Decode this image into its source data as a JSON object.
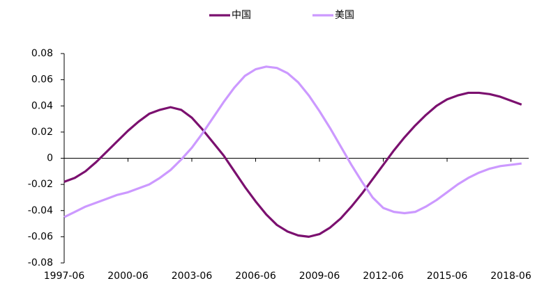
{
  "chart_data": {
    "type": "line",
    "x": [
      "1997-06",
      "1997-12",
      "1998-06",
      "1998-12",
      "1999-06",
      "1999-12",
      "2000-06",
      "2000-12",
      "2001-06",
      "2001-12",
      "2002-06",
      "2002-12",
      "2003-06",
      "2003-12",
      "2004-06",
      "2004-12",
      "2005-06",
      "2005-12",
      "2006-06",
      "2006-12",
      "2007-06",
      "2007-12",
      "2008-06",
      "2008-12",
      "2009-06",
      "2009-12",
      "2010-06",
      "2010-12",
      "2011-06",
      "2011-12",
      "2012-06",
      "2012-12",
      "2013-06",
      "2013-12",
      "2014-06",
      "2014-12",
      "2015-06",
      "2015-12",
      "2016-06",
      "2016-12",
      "2017-06",
      "2017-12",
      "2018-06",
      "2018-12"
    ],
    "series": [
      {
        "name": "中国",
        "color": "#7b106f",
        "values": [
          -0.018,
          -0.015,
          -0.01,
          -0.003,
          0.005,
          0.013,
          0.021,
          0.028,
          0.034,
          0.037,
          0.039,
          0.037,
          0.031,
          0.022,
          0.012,
          0.002,
          -0.01,
          -0.022,
          -0.033,
          -0.043,
          -0.051,
          -0.056,
          -0.059,
          -0.06,
          -0.058,
          -0.053,
          -0.046,
          -0.037,
          -0.027,
          -0.016,
          -0.005,
          0.006,
          0.016,
          0.025,
          0.033,
          0.04,
          0.045,
          0.048,
          0.05,
          0.05,
          0.049,
          0.047,
          0.044,
          0.041
        ]
      },
      {
        "name": "美国",
        "color": "#cc99ff",
        "values": [
          -0.045,
          -0.041,
          -0.037,
          -0.034,
          -0.031,
          -0.028,
          -0.026,
          -0.023,
          -0.02,
          -0.015,
          -0.009,
          -0.001,
          0.008,
          0.019,
          0.031,
          0.043,
          0.054,
          0.063,
          0.068,
          0.07,
          0.069,
          0.065,
          0.058,
          0.048,
          0.036,
          0.023,
          0.009,
          -0.005,
          -0.018,
          -0.03,
          -0.038,
          -0.041,
          -0.042,
          -0.041,
          -0.037,
          -0.032,
          -0.026,
          -0.02,
          -0.015,
          -0.011,
          -0.008,
          -0.006,
          -0.005,
          -0.004
        ]
      }
    ],
    "xticks": [
      "1997-06",
      "2000-06",
      "2003-06",
      "2006-06",
      "2009-06",
      "2012-06",
      "2015-06",
      "2018-06"
    ],
    "ylim": [
      -0.08,
      0.08
    ],
    "yticks": [
      {
        "value": -0.08,
        "label": "-0.08"
      },
      {
        "value": -0.06,
        "label": "-0.06"
      },
      {
        "value": -0.04,
        "label": "-0.04"
      },
      {
        "value": -0.02,
        "label": "-0.02"
      },
      0,
      {
        "value": 0.02,
        "label": "0.02"
      },
      {
        "value": 0.04,
        "label": "0.04"
      },
      {
        "value": 0.06,
        "label": "0.06"
      },
      {
        "value": 0.08,
        "label": "0.08"
      }
    ],
    "legend": "top"
  }
}
